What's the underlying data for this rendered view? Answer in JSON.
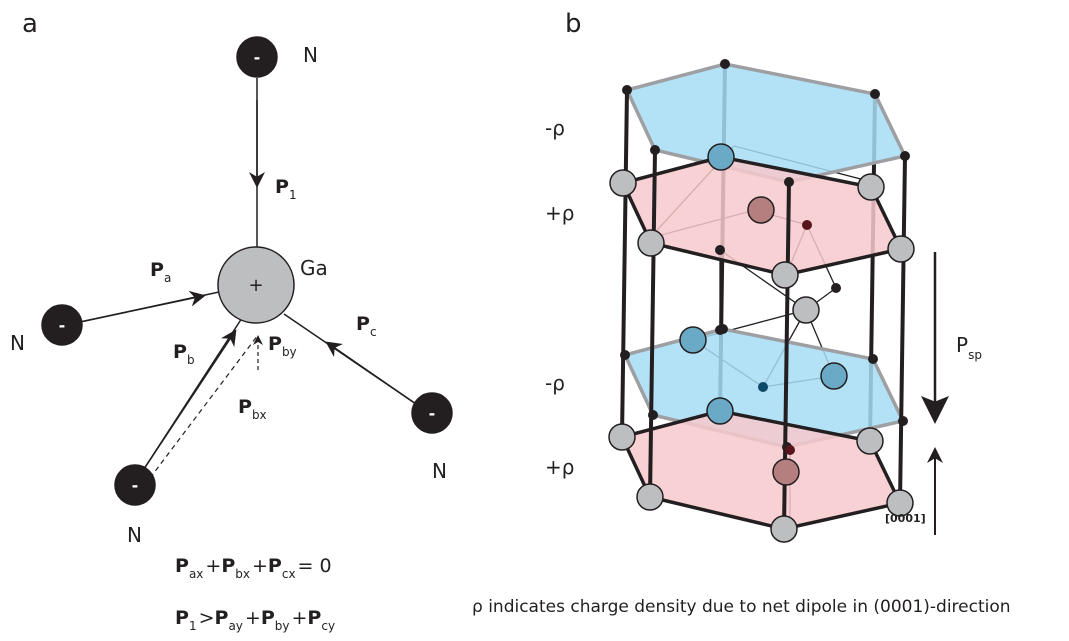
{
  "panels": [
    {
      "label": "a",
      "atoms": [
        {
          "element": "N",
          "charge": "-"
        },
        {
          "element": "N",
          "charge": "-"
        },
        {
          "element": "N",
          "charge": "-"
        },
        {
          "element": "N",
          "charge": "-"
        },
        {
          "element": "Ga",
          "charge": "+"
        }
      ],
      "vectors": [
        {
          "symbol": "P",
          "sub": "1"
        },
        {
          "symbol": "P",
          "sub": "a"
        },
        {
          "symbol": "P",
          "sub": "b"
        },
        {
          "symbol": "P",
          "sub": "by"
        },
        {
          "symbol": "P",
          "sub": "c"
        },
        {
          "symbol": "P",
          "sub": "bx"
        }
      ],
      "equations": [
        [
          {
            "t": "P",
            "sub": "ax"
          },
          {
            "t": "+"
          },
          {
            "t": "P",
            "sub": "bx"
          },
          {
            "t": "+"
          },
          {
            "t": "P",
            "sub": "cx"
          },
          {
            "t": "= 0"
          }
        ],
        [
          {
            "t": "P",
            "sub": "1"
          },
          {
            "t": ">"
          },
          {
            "t": "P",
            "sub": "ay"
          },
          {
            "t": "+"
          },
          {
            "t": "P",
            "sub": "by"
          },
          {
            "t": "+"
          },
          {
            "t": "P",
            "sub": "cy"
          }
        ]
      ]
    },
    {
      "label": "b",
      "layers": [
        "-ρ",
        "+ρ",
        "-ρ",
        "+ρ"
      ],
      "polarization": {
        "symbol": "P",
        "sub": "sp"
      },
      "direction": "[0001]",
      "caption": "ρ indicates charge density due to net dipole in (0001)-direction"
    }
  ]
}
